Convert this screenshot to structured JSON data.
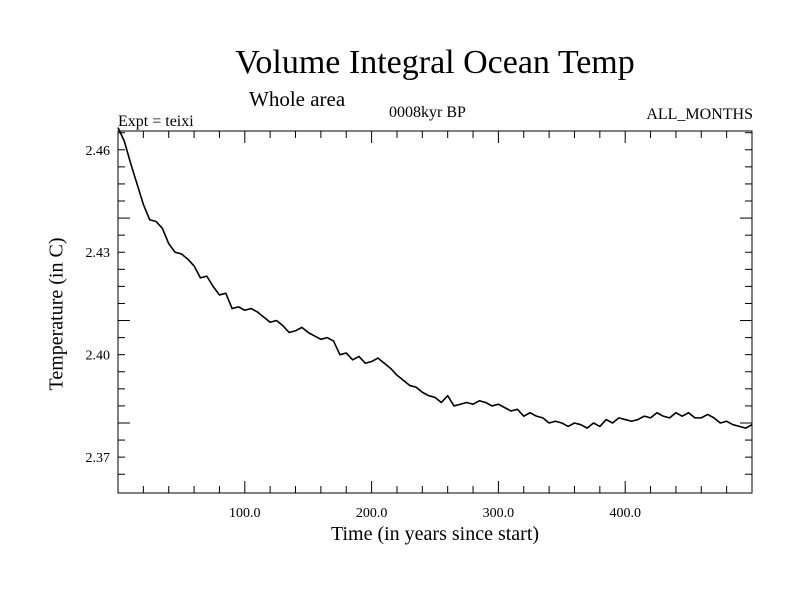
{
  "chart_data": {
    "type": "line",
    "title": "Volume Integral Ocean Temp",
    "subtitle": "Whole area",
    "left_label": "Expt = teixi",
    "center_label": "0008kyr BP",
    "right_label": "ALL_MONTHS",
    "xlabel": "Time (in years since start)",
    "ylabel": "Temperature (in C)",
    "xlim": [
      0,
      500
    ],
    "ylim": [
      2.3595,
      2.4655
    ],
    "xticks": [
      100,
      200,
      300,
      400
    ],
    "xtick_labels": [
      "100.0",
      "200.0",
      "300.0",
      "400.0"
    ],
    "yticks": [
      2.37,
      2.4,
      2.43,
      2.46
    ],
    "ytick_labels": [
      "2.37",
      "2.40",
      "2.43",
      "2.46"
    ],
    "series": [
      {
        "name": "Volume Integral Ocean Temp",
        "x": [
          0,
          5,
          10,
          15,
          20,
          25,
          30,
          35,
          40,
          45,
          50,
          55,
          60,
          65,
          70,
          75,
          80,
          85,
          90,
          95,
          100,
          105,
          110,
          115,
          120,
          125,
          130,
          135,
          140,
          145,
          150,
          155,
          160,
          165,
          170,
          175,
          180,
          185,
          190,
          195,
          200,
          205,
          210,
          215,
          220,
          225,
          230,
          235,
          240,
          245,
          250,
          255,
          260,
          265,
          270,
          275,
          280,
          285,
          290,
          295,
          300,
          305,
          310,
          315,
          320,
          325,
          330,
          335,
          340,
          345,
          350,
          355,
          360,
          365,
          370,
          375,
          380,
          385,
          390,
          395,
          400,
          405,
          410,
          415,
          420,
          425,
          430,
          435,
          440,
          445,
          450,
          455,
          460,
          465,
          470,
          475,
          480,
          485,
          490,
          495,
          500
        ],
        "values": [
          2.4665,
          2.4625,
          2.456,
          2.45,
          2.444,
          2.4395,
          2.439,
          2.437,
          2.4325,
          2.43,
          2.4295,
          2.428,
          2.426,
          2.4225,
          2.423,
          2.42,
          2.4175,
          2.418,
          2.4135,
          2.414,
          2.413,
          2.4135,
          2.4125,
          2.411,
          2.4095,
          2.41,
          2.4085,
          2.4065,
          2.407,
          2.408,
          2.4065,
          2.4055,
          2.4045,
          2.405,
          2.404,
          2.4,
          2.4005,
          2.3985,
          2.3995,
          2.3975,
          2.398,
          2.399,
          2.3975,
          2.396,
          2.394,
          2.3925,
          2.391,
          2.3905,
          2.389,
          2.388,
          2.3875,
          2.386,
          2.388,
          2.385,
          2.3855,
          2.386,
          2.3855,
          2.3865,
          2.386,
          2.385,
          2.3855,
          2.3845,
          2.3835,
          2.384,
          2.382,
          2.383,
          2.382,
          2.3815,
          2.38,
          2.3805,
          2.38,
          2.379,
          2.38,
          2.3795,
          2.3785,
          2.38,
          2.379,
          2.381,
          2.38,
          2.3815,
          2.381,
          2.3805,
          2.381,
          2.382,
          2.3815,
          2.383,
          2.382,
          2.3815,
          2.383,
          2.382,
          2.383,
          2.3815,
          2.3815,
          2.3825,
          2.3815,
          2.38,
          2.3805,
          2.3795,
          2.379,
          2.3785,
          2.3795
        ]
      }
    ]
  }
}
